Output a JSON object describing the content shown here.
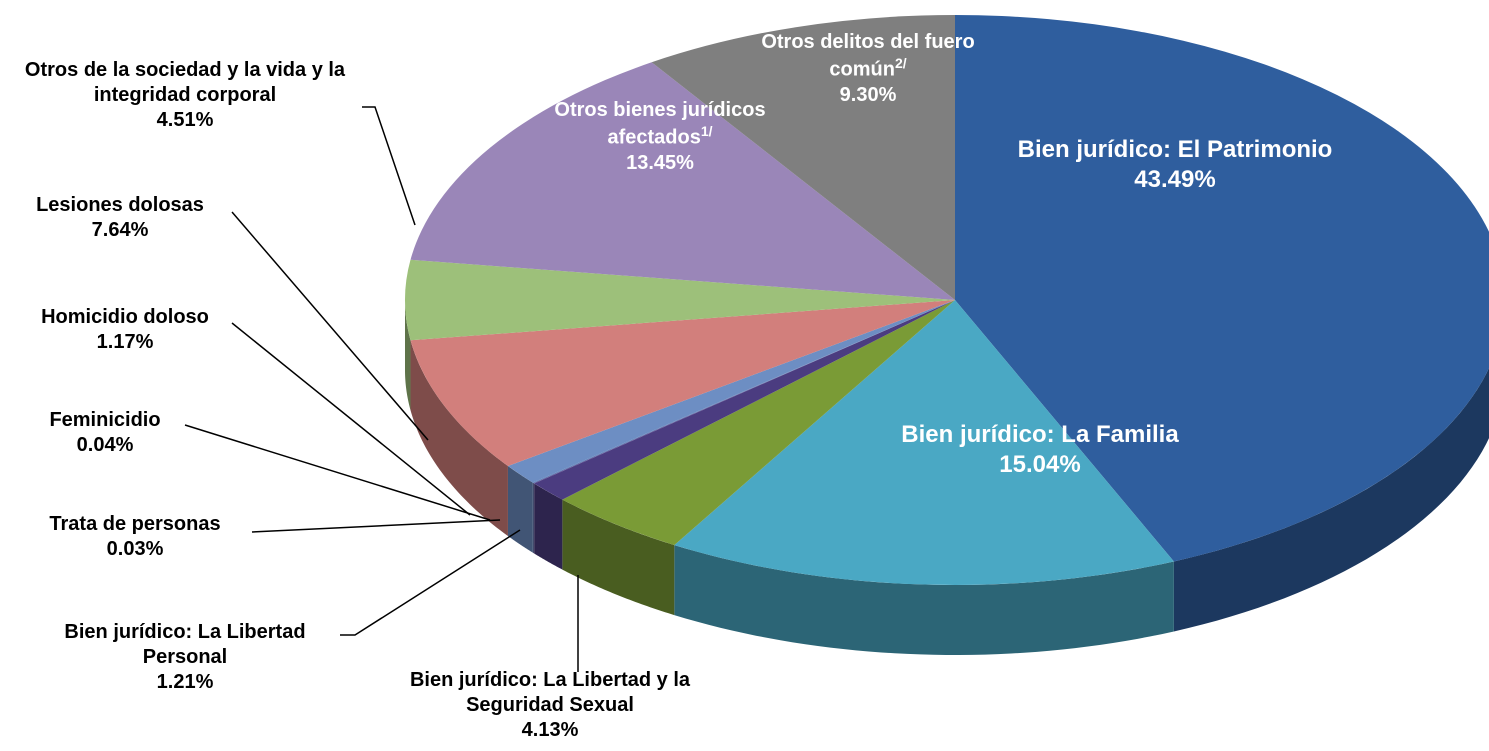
{
  "chart_data": {
    "type": "pie",
    "categories": [
      "Bien jurídico: El Patrimonio",
      "Bien jurídico: La Familia",
      "Bien jurídico: La Libertad y la Seguridad Sexual",
      "Bien jurídico: La Libertad Personal",
      "Trata de personas",
      "Feminicidio",
      "Homicidio doloso",
      "Lesiones dolosas",
      "Otros de la sociedad y la vida y la integridad corporal",
      "Otros bienes jurídicos afectados",
      "Otros delitos del fuero común"
    ],
    "notes": [
      null,
      null,
      null,
      null,
      null,
      null,
      null,
      null,
      null,
      "1/",
      "2/"
    ],
    "values": [
      43.49,
      15.04,
      4.13,
      1.21,
      0.03,
      0.04,
      1.17,
      7.64,
      4.51,
      13.45,
      9.3
    ],
    "value_labels": [
      "43.49%",
      "15.04%",
      "4.13%",
      "1.21%",
      "0.03%",
      "0.04%",
      "1.17%",
      "7.64%",
      "4.51%",
      "13.45%",
      "9.30%"
    ],
    "colors": [
      "#2f5e9e",
      "#4aa8c4",
      "#7a9b36",
      "#4b3c80",
      "#5a4a90",
      "#5b7fb5",
      "#6d8ec3",
      "#d27f7c",
      "#9dc07a",
      "#9a86b8",
      "#7f7f7f"
    ]
  }
}
